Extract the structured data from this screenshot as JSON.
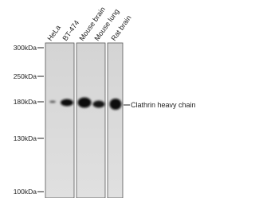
{
  "lanes": [
    "HeLa",
    "BT-474",
    "Mouse brain",
    "Mouse lung",
    "Rat brain"
  ],
  "markers": [
    "300kDa",
    "250kDa",
    "180kDa",
    "130kDa",
    "100kDa"
  ],
  "band_label": "Clathrin heavy chain"
}
